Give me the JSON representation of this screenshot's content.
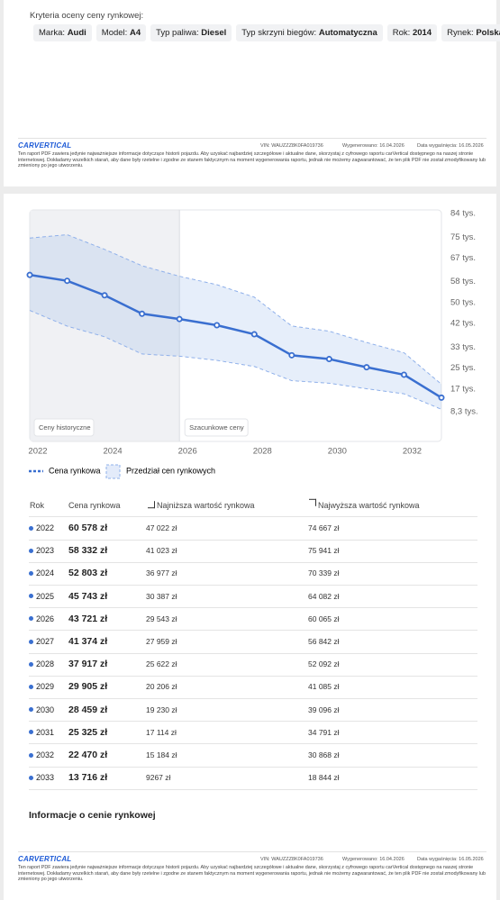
{
  "criteria": {
    "title": "Kryteria oceny ceny rynkowej:",
    "items": [
      {
        "label": "Marka:",
        "value": "Audi"
      },
      {
        "label": "Model:",
        "value": "A4"
      },
      {
        "label": "Typ paliwa:",
        "value": "Diesel"
      },
      {
        "label": "Typ skrzyni biegów:",
        "value": "Automatyczna"
      },
      {
        "label": "Rok:",
        "value": "2014"
      },
      {
        "label": "Rynek:",
        "value": "Polska"
      }
    ]
  },
  "footer": {
    "logo": "CARVERTICAL",
    "vin": "VIN: WAUZZZ8K0FA019736",
    "generated": "Wygenerowano: 16.04.2026",
    "expires": "Data wygaśnięcia: 16.05.2026",
    "disclaimer": "Ten raport PDF zawiera jedynie najważniejsze informacje dotyczące historii pojazdu. Aby uzyskać najbardziej szczegółowe i aktualne dane, skorzystaj z cyfrowego raportu carVertical dostępnego na naszej stronie internetowej. Dokładamy wszelkich starań, aby dane były rzetelne i zgodne ze stanem faktycznym na moment wygenerowania raportu, jednak nie możemy zagwarantować, że ten plik PDF nie został zmodyfikowany lub zmieniony po jego utworzeniu."
  },
  "chart_data": {
    "type": "line",
    "x": [
      2022,
      2023,
      2024,
      2025,
      2026,
      2027,
      2028,
      2029,
      2030,
      2031,
      2032,
      2033
    ],
    "xlim": [
      2022,
      2033
    ],
    "xticks": [
      2022,
      2024,
      2026,
      2028,
      2030,
      2032
    ],
    "ylim": [
      -3000,
      85400
    ],
    "yticks": [
      {
        "value": 8300,
        "label": "8,3 tys."
      },
      {
        "value": 17000,
        "label": "17 tys."
      },
      {
        "value": 25000,
        "label": "25 tys."
      },
      {
        "value": 33000,
        "label": "33 tys."
      },
      {
        "value": 42000,
        "label": "42 tys."
      },
      {
        "value": 50000,
        "label": "50 tys."
      },
      {
        "value": 58000,
        "label": "58 tys."
      },
      {
        "value": 67000,
        "label": "67 tys."
      },
      {
        "value": 75000,
        "label": "75 tys."
      },
      {
        "value": 84000,
        "label": "84 tys."
      }
    ],
    "history": {
      "end": 2026,
      "labels": [
        "Ceny historyczne",
        "Szacunkowe ceny"
      ]
    },
    "series": [
      {
        "name": "Cena rynkowa",
        "color": "#3a6fd0",
        "values": [
          60578,
          58332,
          52803,
          45743,
          43721,
          41374,
          37917,
          29905,
          28459,
          25325,
          22470,
          13716
        ],
        "value_labels": [
          "60 578 zł",
          "58 332 zł",
          "52 803 zł",
          "45 743 zł",
          "43 721 zł",
          "41 374 zł",
          "37 917 zł",
          "29 905 zł",
          "28 459 zł",
          "25 325 zł",
          "22 470 zł",
          "13 716 zł"
        ]
      }
    ],
    "band": {
      "name": "Przedział cen rynkowych",
      "color": "#8fb0ea",
      "lower": {
        "name": "Najniższa wartość rynkowa",
        "values": [
          47022,
          41023,
          36977,
          30387,
          29543,
          27959,
          25622,
          20206,
          19230,
          17114,
          15184,
          9267
        ],
        "value_labels": [
          "47 022 zł",
          "41 023 zł",
          "36 977 zł",
          "30 387 zł",
          "29 543 zł",
          "27 959 zł",
          "25 622 zł",
          "20 206 zł",
          "19 230 zł",
          "17 114 zł",
          "15 184 zł",
          "9267 zł"
        ]
      },
      "upper": {
        "name": "Najwyższa wartość rynkowa",
        "values": [
          74667,
          75941,
          70339,
          64082,
          60065,
          56842,
          52092,
          41085,
          39096,
          34791,
          30868,
          18844
        ],
        "value_labels": [
          "74 667 zł",
          "75 941 zł",
          "70 339 zł",
          "64 082 zł",
          "60 065 zł",
          "56 842 zł",
          "52 092 zł",
          "41 085 zł",
          "39 096 zł",
          "34 791 zł",
          "30 868 zł",
          "18 844 zł"
        ]
      }
    }
  },
  "table": {
    "year_header": "Rok"
  },
  "info_title": "Informacje o cenie rynkowej"
}
